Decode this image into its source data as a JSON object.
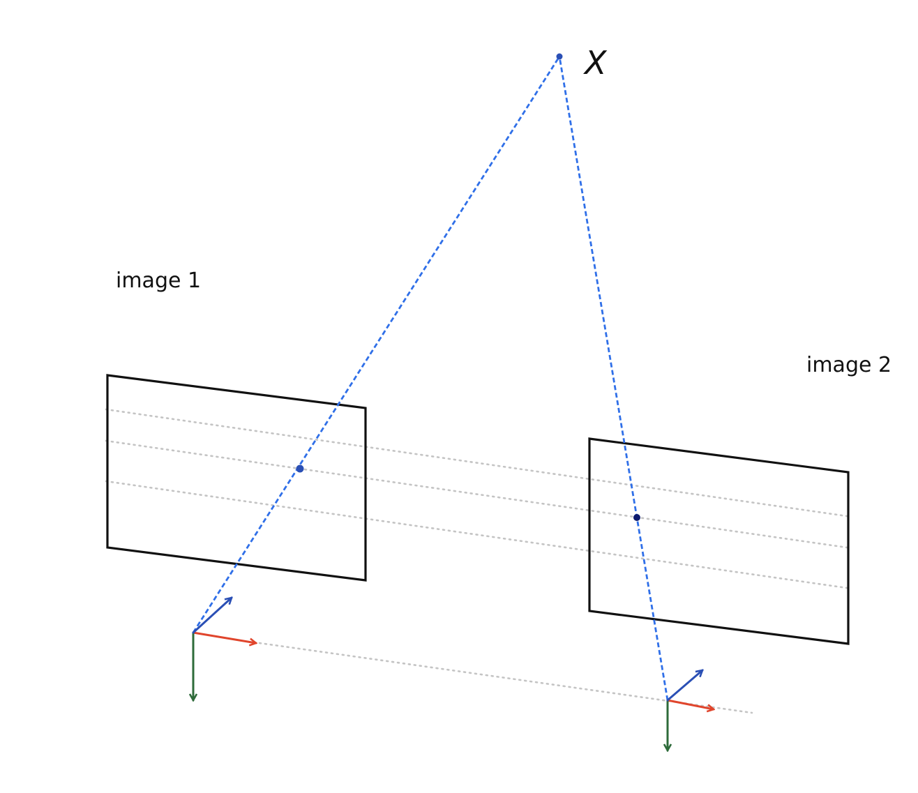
{
  "labels": {
    "point": "X",
    "image1": "image 1",
    "image2": "image 2"
  },
  "colors": {
    "ray": "#2f6fe8",
    "epipolar_line": "#c4c4c4",
    "point": "#2a4fb5",
    "projection_image2": "#0d1a6e",
    "axis_x": "#e0452c",
    "axis_y": "#2e6b3a",
    "axis_z": "#2a4fb5",
    "plane_border": "#111111"
  },
  "icons": {
    "axis_x": "red-arrow-icon",
    "axis_y": "green-arrow-icon",
    "axis_z": "blue-arrow-icon"
  }
}
